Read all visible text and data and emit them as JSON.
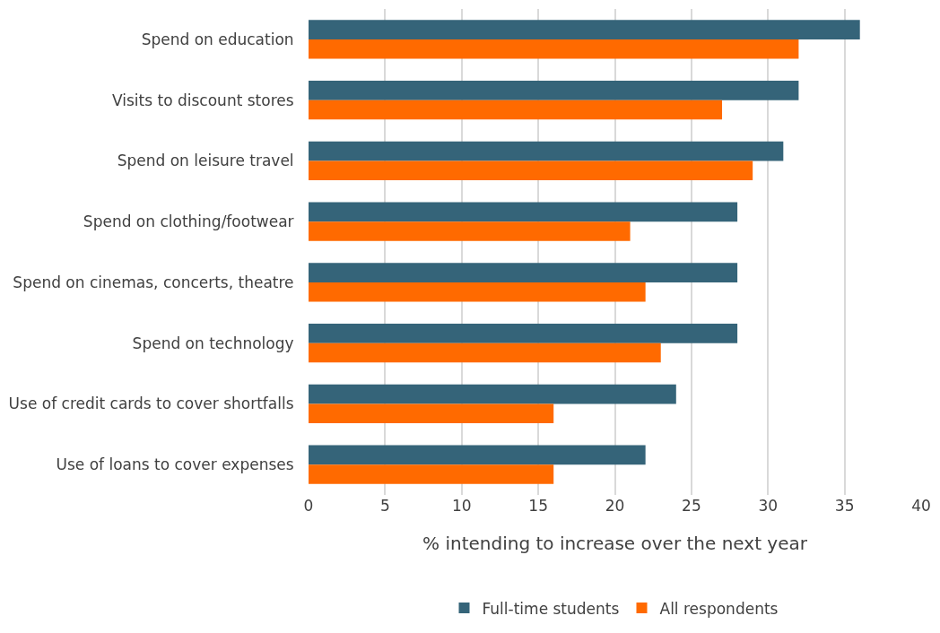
{
  "chart_data": {
    "type": "bar",
    "orientation": "horizontal",
    "xlabel": "% intending to increase over the next year",
    "categories": [
      "Spend on education",
      "Visits to discount stores",
      "Spend on leisure travel",
      "Spend on clothing/footwear",
      "Spend on cinemas, concerts, theatre",
      "Spend on technology",
      "Use of credit cards to cover shortfalls",
      "Use of loans to cover expenses"
    ],
    "series": [
      {
        "name": "Full-time students",
        "color": "#356479",
        "values": [
          36,
          32,
          31,
          28,
          28,
          28,
          24,
          22
        ]
      },
      {
        "name": "All respondents",
        "color": "#ff6a00",
        "values": [
          32,
          27,
          29,
          21,
          22,
          23,
          16,
          16
        ]
      }
    ],
    "xlim": [
      0,
      40
    ],
    "xticks": [
      0,
      5,
      10,
      15,
      20,
      25,
      30,
      35,
      40
    ],
    "grid": "x",
    "legend": "bottom"
  }
}
